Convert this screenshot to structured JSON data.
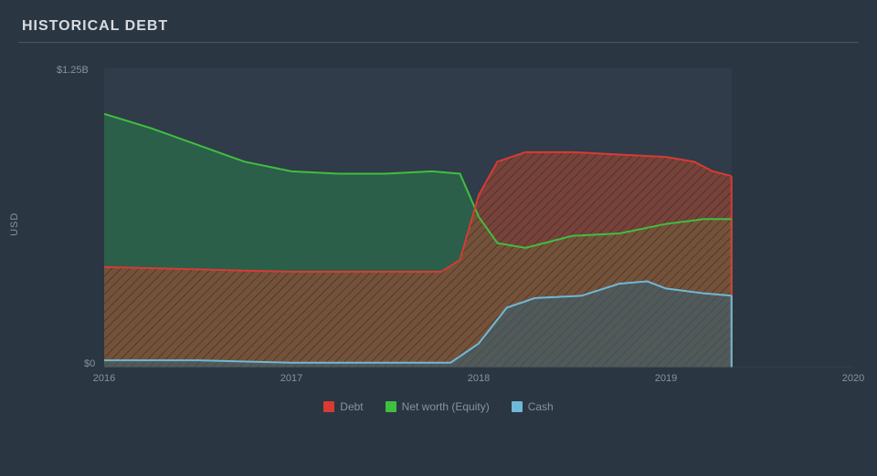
{
  "title": "HISTORICAL DEBT",
  "y_axis_label": "USD",
  "background_color": "#2a3642",
  "plot_bg_color": "#303c49",
  "grid_color": "#3a4652",
  "tick_text_color": "#8a929c",
  "title_color": "#d8dce0",
  "y_ticks": {
    "top": "$1.25B",
    "bottom": "$0"
  },
  "ylim": [
    0,
    1.25
  ],
  "x_ticks": [
    "2016",
    "2017",
    "2018",
    "2019",
    "2020"
  ],
  "xlim": [
    2016,
    2020
  ],
  "data_x_extent": [
    2016,
    2019.35
  ],
  "legend": [
    {
      "label": "Debt",
      "color": "#d83a34"
    },
    {
      "label": "Net worth (Equity)",
      "color": "#3fbf3f"
    },
    {
      "label": "Cash",
      "color": "#6fb8d6"
    }
  ],
  "series": {
    "equity": {
      "stroke": "#3fbf3f",
      "fill": "#2a6b4a",
      "fill_opacity": 0.75,
      "stroke_width": 2,
      "points": [
        [
          2016.0,
          1.06
        ],
        [
          2016.25,
          1.0
        ],
        [
          2016.5,
          0.93
        ],
        [
          2016.75,
          0.86
        ],
        [
          2017.0,
          0.82
        ],
        [
          2017.25,
          0.81
        ],
        [
          2017.5,
          0.81
        ],
        [
          2017.75,
          0.82
        ],
        [
          2017.9,
          0.81
        ],
        [
          2018.0,
          0.63
        ],
        [
          2018.1,
          0.52
        ],
        [
          2018.25,
          0.5
        ],
        [
          2018.5,
          0.55
        ],
        [
          2018.75,
          0.56
        ],
        [
          2019.0,
          0.6
        ],
        [
          2019.2,
          0.62
        ],
        [
          2019.35,
          0.62
        ]
      ]
    },
    "debt": {
      "stroke": "#d83a34",
      "fill": "#b0462e",
      "fill_opacity": 0.55,
      "stroke_width": 2,
      "hatch": true,
      "hatch_color": "#3a2a24",
      "points": [
        [
          2016.0,
          0.42
        ],
        [
          2016.5,
          0.41
        ],
        [
          2017.0,
          0.4
        ],
        [
          2017.5,
          0.4
        ],
        [
          2017.8,
          0.4
        ],
        [
          2017.9,
          0.45
        ],
        [
          2018.0,
          0.72
        ],
        [
          2018.1,
          0.86
        ],
        [
          2018.25,
          0.9
        ],
        [
          2018.5,
          0.9
        ],
        [
          2018.75,
          0.89
        ],
        [
          2019.0,
          0.88
        ],
        [
          2019.15,
          0.86
        ],
        [
          2019.25,
          0.82
        ],
        [
          2019.35,
          0.8
        ]
      ]
    },
    "cash": {
      "stroke": "#6fb8d6",
      "fill": "#3a5f6e",
      "fill_opacity": 0.6,
      "stroke_width": 2,
      "points": [
        [
          2016.0,
          0.03
        ],
        [
          2016.5,
          0.03
        ],
        [
          2017.0,
          0.02
        ],
        [
          2017.5,
          0.02
        ],
        [
          2017.85,
          0.02
        ],
        [
          2018.0,
          0.1
        ],
        [
          2018.15,
          0.25
        ],
        [
          2018.3,
          0.29
        ],
        [
          2018.55,
          0.3
        ],
        [
          2018.75,
          0.35
        ],
        [
          2018.9,
          0.36
        ],
        [
          2019.0,
          0.33
        ],
        [
          2019.2,
          0.31
        ],
        [
          2019.35,
          0.3
        ]
      ]
    }
  }
}
